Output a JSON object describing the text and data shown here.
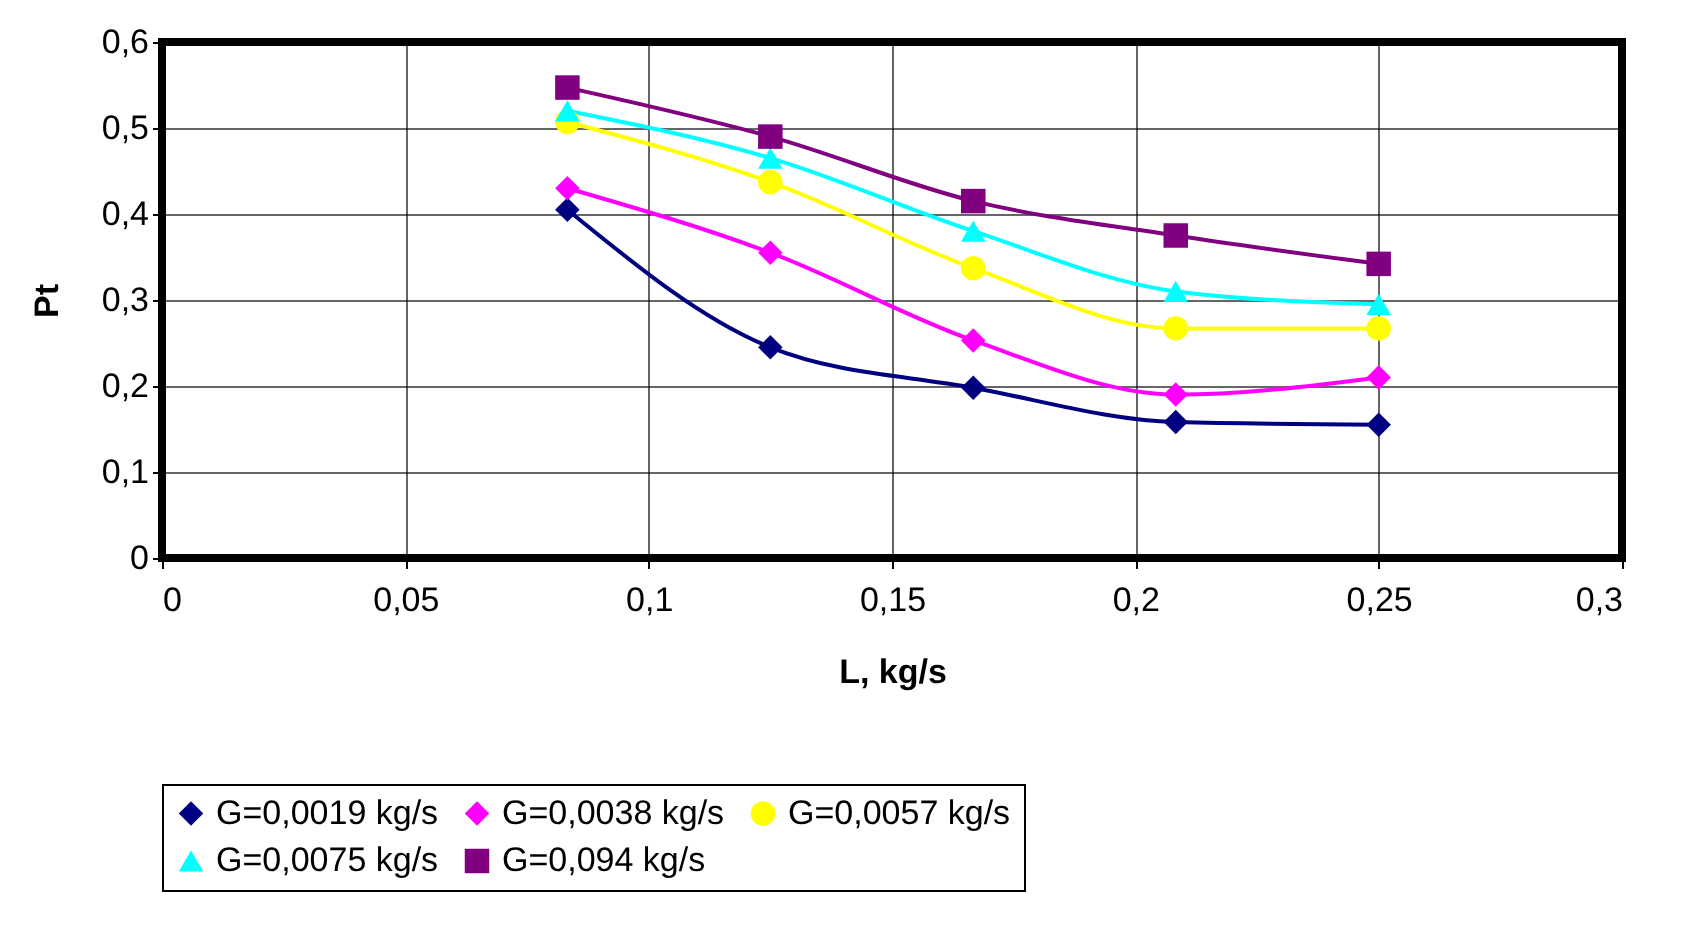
{
  "chart_data": {
    "type": "line",
    "xlabel": "L, kg/s",
    "ylabel": "Pt",
    "x": [
      0.0833,
      0.125,
      0.1667,
      0.2083,
      0.25
    ],
    "series": [
      {
        "name": "G=0,0019 kg/s",
        "color": "#000080",
        "marker": "diamond",
        "values": [
          0.405,
          0.245,
          0.198,
          0.158,
          0.155
        ]
      },
      {
        "name": "G=0,0038 kg/s",
        "color": "#ff00ff",
        "marker": "diamond",
        "values": [
          0.43,
          0.355,
          0.253,
          0.19,
          0.21
        ]
      },
      {
        "name": "G=0,0057 kg/s",
        "color": "#ffff00",
        "marker": "circle",
        "values": [
          0.507,
          0.437,
          0.337,
          0.267,
          0.267
        ]
      },
      {
        "name": "G=0,0075 kg/s",
        "color": "#00ffff",
        "marker": "triangle",
        "values": [
          0.52,
          0.465,
          0.38,
          0.31,
          0.295
        ]
      },
      {
        "name": "G=0,094 kg/s",
        "color": "#800080",
        "marker": "square",
        "values": [
          0.547,
          0.49,
          0.415,
          0.375,
          0.342
        ]
      }
    ],
    "xlim": [
      0,
      0.3
    ],
    "xticks": [
      0,
      {
        "value": 0.05,
        "label": "0,05"
      },
      {
        "value": 0.1,
        "label": "0,1"
      },
      {
        "value": 0.15,
        "label": "0,15"
      },
      {
        "value": 0.2,
        "label": "0,2"
      },
      {
        "value": 0.25,
        "label": "0,25"
      },
      {
        "value": 0.3,
        "label": "0,3"
      }
    ],
    "ylim": [
      0,
      0.6
    ],
    "yticks": [
      0,
      {
        "value": 0.1,
        "label": "0,1"
      },
      {
        "value": 0.2,
        "label": "0,2"
      },
      {
        "value": 0.3,
        "label": "0,3"
      },
      {
        "value": 0.4,
        "label": "0,4"
      },
      {
        "value": 0.5,
        "label": "0,5"
      },
      {
        "value": 0.6,
        "label": "0,6"
      }
    ],
    "grid": true,
    "legend": "bottom",
    "line_style": "solid"
  }
}
